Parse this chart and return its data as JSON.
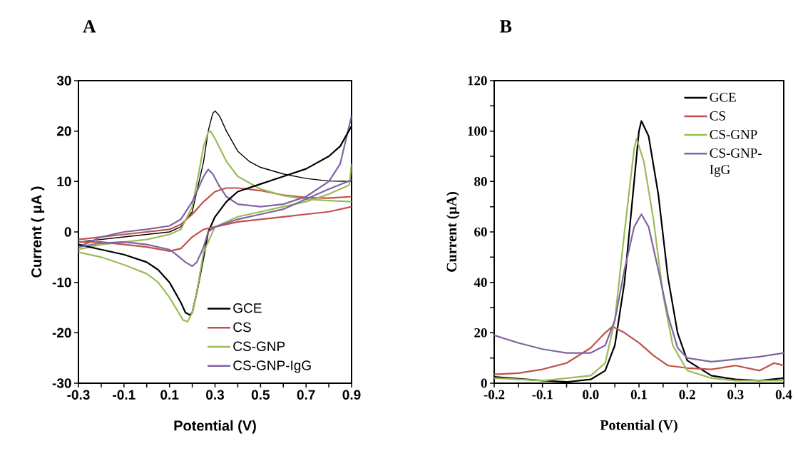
{
  "chart_data": [
    {
      "type": "line",
      "title": "A",
      "xlabel": "Potential (V)",
      "ylabel": "Current ( μA )",
      "legend": "bottom right",
      "grid": false,
      "marker": "none",
      "line_style": "solid",
      "xlim": [
        -0.3,
        0.9
      ],
      "ylim": [
        -30,
        30
      ],
      "xticks": [
        {
          "value": -0.3,
          "label": "-0.3"
        },
        {
          "value": -0.2,
          "label": null
        },
        {
          "value": -0.1,
          "label": "-0.1"
        },
        {
          "value": 0,
          "label": null
        },
        {
          "value": 0.1,
          "label": "0.1"
        },
        {
          "value": 0.2,
          "label": null
        },
        {
          "value": 0.3,
          "label": "0.3"
        },
        {
          "value": 0.4,
          "label": null
        },
        {
          "value": 0.5,
          "label": "0.5"
        },
        {
          "value": 0.6,
          "label": null
        },
        {
          "value": 0.7,
          "label": "0.7"
        },
        {
          "value": 0.8,
          "label": null
        },
        {
          "value": 0.9,
          "label": "0.9"
        }
      ],
      "yticks": [
        -30,
        -20,
        -10,
        0,
        10,
        20,
        30
      ],
      "series": [
        {
          "name": "GCE",
          "color": "#000000",
          "x": [
            -0.3,
            -0.2,
            -0.1,
            0,
            0.1,
            0.15,
            0.2,
            0.25,
            0.27,
            0.29,
            0.3,
            0.32,
            0.35,
            0.4,
            0.45,
            0.5,
            0.6,
            0.7,
            0.8,
            0.9
          ],
          "values": [
            -2,
            -1.5,
            -1,
            -0.5,
            0,
            1,
            4,
            14,
            20,
            23.5,
            24,
            23,
            20,
            16,
            14,
            12.8,
            11.5,
            10.6,
            10.1,
            10
          ]
        },
        {
          "name": "CS",
          "color": "#c0504d",
          "x": [
            -0.3,
            -0.2,
            -0.1,
            0,
            0.1,
            0.15,
            0.2,
            0.25,
            0.3,
            0.35,
            0.4,
            0.5,
            0.6,
            0.7,
            0.8,
            0.9
          ],
          "values": [
            -1.5,
            -1,
            -0.5,
            0,
            0.5,
            1.5,
            3.5,
            6,
            8,
            8.7,
            8.7,
            8.2,
            7.3,
            6.8,
            6.7,
            7
          ]
        },
        {
          "name": "CS-GNP",
          "color": "#9bbb59",
          "x": [
            -0.3,
            -0.2,
            -0.1,
            0,
            0.1,
            0.15,
            0.2,
            0.23,
            0.25,
            0.27,
            0.28,
            0.3,
            0.35,
            0.4,
            0.5,
            0.6,
            0.7,
            0.8,
            0.9
          ],
          "values": [
            -3.5,
            -2.5,
            -2,
            -1.5,
            -0.5,
            0.5,
            5,
            12,
            17,
            19.8,
            20,
            18.5,
            14,
            11,
            8.5,
            7.2,
            6.5,
            6.2,
            6
          ]
        },
        {
          "name": "CS-GNP-IgG",
          "color": "#8064a2",
          "x": [
            -0.3,
            -0.2,
            -0.1,
            0,
            0.1,
            0.15,
            0.2,
            0.25,
            0.27,
            0.29,
            0.32,
            0.35,
            0.4,
            0.5,
            0.6,
            0.7,
            0.8,
            0.85,
            0.9
          ],
          "values": [
            -3,
            -1,
            0,
            0.5,
            1.2,
            2.5,
            6,
            11,
            12.4,
            11.5,
            9,
            7,
            5.5,
            5,
            5.5,
            7,
            10,
            13.5,
            23
          ]
        },
        {
          "color": "#000000",
          "x": [
            -0.3,
            -0.2,
            -0.1,
            0,
            0.05,
            0.1,
            0.15,
            0.17,
            0.19,
            0.2,
            0.22,
            0.25,
            0.27,
            0.3,
            0.35,
            0.4,
            0.5,
            0.6,
            0.7,
            0.8,
            0.85,
            0.9
          ],
          "values": [
            -2.5,
            -3.5,
            -4.5,
            -6,
            -7.5,
            -10,
            -14,
            -16,
            -16.5,
            -16,
            -12,
            -5,
            0,
            3,
            6,
            8,
            9.5,
            11,
            12.5,
            15,
            17,
            21
          ]
        },
        {
          "color": "#c0504d",
          "x": [
            -0.3,
            -0.2,
            -0.1,
            0,
            0.1,
            0.15,
            0.2,
            0.25,
            0.3,
            0.4,
            0.5,
            0.6,
            0.7,
            0.8,
            0.9
          ],
          "values": [
            -2,
            -2,
            -2.5,
            -3,
            -3.8,
            -3.3,
            -1,
            0.5,
            1,
            2,
            2.5,
            3,
            3.5,
            4,
            5
          ]
        },
        {
          "color": "#9bbb59",
          "x": [
            -0.3,
            -0.2,
            -0.1,
            0,
            0.05,
            0.1,
            0.16,
            0.18,
            0.2,
            0.22,
            0.25,
            0.3,
            0.4,
            0.5,
            0.6,
            0.7,
            0.8,
            0.89,
            0.9
          ],
          "values": [
            -4,
            -5,
            -6.5,
            -8.3,
            -10,
            -13,
            -17.5,
            -17.8,
            -16,
            -12,
            -4,
            1,
            3,
            4,
            5,
            6,
            7.5,
            9.3,
            13.5
          ]
        },
        {
          "color": "#8064a2",
          "x": [
            -0.3,
            -0.2,
            -0.1,
            0,
            0.1,
            0.13,
            0.17,
            0.2,
            0.22,
            0.25,
            0.27,
            0.3,
            0.4,
            0.5,
            0.6,
            0.7,
            0.8,
            0.9
          ],
          "values": [
            -3,
            -2.2,
            -2,
            -2.5,
            -3.5,
            -4.5,
            -6,
            -6.8,
            -6,
            -3,
            0,
            1,
            2.5,
            3.5,
            4.5,
            6.5,
            8.5,
            10.3
          ]
        }
      ]
    },
    {
      "type": "line",
      "title": "B",
      "xlabel": "Potential (V)",
      "ylabel": "Current (μA)",
      "legend": "top right",
      "grid": false,
      "marker": "none",
      "line_style": "solid",
      "xlim": [
        -0.2,
        0.4
      ],
      "ylim": [
        0,
        120
      ],
      "xticks": [
        {
          "value": -0.2,
          "label": "-0.2"
        },
        {
          "value": -0.15,
          "label": null
        },
        {
          "value": -0.1,
          "label": "-0.1"
        },
        {
          "value": -0.05,
          "label": null
        },
        {
          "value": 0,
          "label": "0.0"
        },
        {
          "value": 0.05,
          "label": null
        },
        {
          "value": 0.1,
          "label": "0.1"
        },
        {
          "value": 0.15,
          "label": null
        },
        {
          "value": 0.2,
          "label": "0.2"
        },
        {
          "value": 0.25,
          "label": null
        },
        {
          "value": 0.3,
          "label": "0.3"
        },
        {
          "value": 0.35,
          "label": null
        },
        {
          "value": 0.4,
          "label": "0.4"
        }
      ],
      "yticks": [
        0,
        {
          "value": 10,
          "label": null
        },
        20,
        {
          "value": 30,
          "label": null
        },
        40,
        {
          "value": 50,
          "label": null
        },
        60,
        {
          "value": 70,
          "label": null
        },
        80,
        {
          "value": 90,
          "label": null
        },
        100,
        {
          "value": 110,
          "label": null
        },
        120
      ],
      "series": [
        {
          "name": "GCE",
          "color": "#000000",
          "x": [
            -0.2,
            -0.1,
            -0.05,
            0,
            0.03,
            0.05,
            0.07,
            0.09,
            0.1,
            0.105,
            0.12,
            0.14,
            0.16,
            0.18,
            0.2,
            0.25,
            0.3,
            0.35,
            0.4
          ],
          "values": [
            2.5,
            1,
            0.5,
            1.5,
            5,
            15,
            40,
            80,
            100,
            104,
            98,
            75,
            42,
            20,
            9,
            3,
            1.5,
            1,
            2
          ]
        },
        {
          "name": "CS",
          "color": "#c0504d",
          "x": [
            -0.2,
            -0.15,
            -0.1,
            -0.05,
            0,
            0.03,
            0.045,
            0.07,
            0.1,
            0.13,
            0.16,
            0.2,
            0.25,
            0.3,
            0.35,
            0.38,
            0.4
          ],
          "values": [
            3.5,
            4,
            5.5,
            8,
            14,
            20,
            22.5,
            20,
            16,
            11,
            7,
            6,
            5.5,
            7,
            5,
            8,
            7
          ]
        },
        {
          "name": "CS-GNP",
          "color": "#9bbb59",
          "x": [
            -0.2,
            -0.1,
            0,
            0.03,
            0.05,
            0.07,
            0.09,
            0.095,
            0.11,
            0.13,
            0.15,
            0.17,
            0.2,
            0.25,
            0.3,
            0.4
          ],
          "values": [
            2,
            1,
            3,
            8,
            25,
            60,
            93,
            97,
            88,
            65,
            35,
            15,
            5,
            2,
            1,
            1
          ]
        },
        {
          "name": "CS-GNP-IgG",
          "color": "#8064a2",
          "x": [
            -0.2,
            -0.15,
            -0.1,
            -0.05,
            0,
            0.03,
            0.05,
            0.07,
            0.09,
            0.105,
            0.12,
            0.14,
            0.16,
            0.18,
            0.2,
            0.25,
            0.3,
            0.35,
            0.4
          ],
          "values": [
            19,
            16,
            13.5,
            12,
            12,
            15,
            25,
            45,
            62,
            67,
            62,
            45,
            27,
            14,
            10,
            8.5,
            9.5,
            10.5,
            12
          ]
        }
      ]
    }
  ]
}
